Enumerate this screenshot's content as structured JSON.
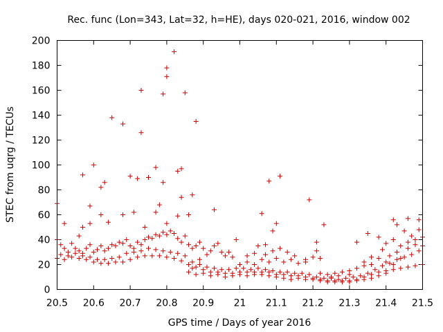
{
  "chart_data": {
    "type": "scatter",
    "title": "Rec. func (Lon=343, Lat=32, h=HE), days 020-021, 2016, window 002",
    "xlabel": "GPS time / Days of year 2016",
    "ylabel": "STEC from uqrg / TECUs",
    "xlim": [
      20.5,
      21.5
    ],
    "ylim": [
      0,
      200
    ],
    "xticks": [
      "20.5",
      "20.6",
      "20.7",
      "20.8",
      "20.9",
      "21",
      "21.1",
      "21.2",
      "21.3",
      "21.4",
      "21.5"
    ],
    "yticks": [
      "0",
      "20",
      "40",
      "60",
      "80",
      "100",
      "120",
      "140",
      "160",
      "180",
      "200"
    ],
    "grid": false,
    "marker": "+",
    "colors": {
      "points": "#cc0000",
      "axes": "#000000"
    },
    "series": [
      {
        "name": "STEC",
        "points": [
          [
            20.5,
            69
          ],
          [
            20.52,
            53
          ],
          [
            20.57,
            92
          ],
          [
            20.59,
            67
          ],
          [
            20.6,
            100
          ],
          [
            20.62,
            82
          ],
          [
            20.63,
            86
          ],
          [
            20.65,
            138
          ],
          [
            20.68,
            133
          ],
          [
            20.7,
            91
          ],
          [
            20.72,
            89
          ],
          [
            20.73,
            160
          ],
          [
            20.73,
            126
          ],
          [
            20.75,
            90
          ],
          [
            20.77,
            98
          ],
          [
            20.79,
            157
          ],
          [
            20.8,
            171
          ],
          [
            20.8,
            178
          ],
          [
            20.82,
            191
          ],
          [
            20.83,
            95
          ],
          [
            20.84,
            97
          ],
          [
            20.85,
            158
          ],
          [
            20.88,
            135
          ],
          [
            20.87,
            76
          ],
          [
            20.93,
            64
          ],
          [
            21.08,
            87
          ],
          [
            21.11,
            91
          ],
          [
            21.19,
            72
          ],
          [
            21.1,
            53
          ],
          [
            21.06,
            61
          ],
          [
            21.23,
            52
          ],
          [
            21.42,
            56
          ],
          [
            21.43,
            52
          ],
          [
            21.46,
            57
          ],
          [
            21.49,
            56
          ],
          [
            20.64,
            54
          ],
          [
            20.62,
            60
          ],
          [
            20.71,
            62
          ],
          [
            20.77,
            62
          ],
          [
            20.8,
            53
          ],
          [
            20.83,
            59
          ],
          [
            20.86,
            60
          ],
          [
            20.78,
            68
          ],
          [
            20.84,
            74
          ],
          [
            20.79,
            86
          ],
          [
            20.68,
            60
          ],
          [
            20.74,
            50
          ],
          [
            20.57,
            50
          ],
          [
            20.59,
            53
          ],
          [
            20.56,
            43
          ],
          [
            20.5,
            40
          ],
          [
            20.51,
            36
          ],
          [
            20.52,
            33
          ],
          [
            20.53,
            30
          ],
          [
            20.54,
            37
          ],
          [
            20.55,
            33
          ],
          [
            20.56,
            31
          ],
          [
            20.57,
            29
          ],
          [
            20.58,
            33
          ],
          [
            20.59,
            36
          ],
          [
            20.6,
            30
          ],
          [
            20.61,
            32
          ],
          [
            20.62,
            35
          ],
          [
            20.63,
            31
          ],
          [
            20.64,
            33
          ],
          [
            20.65,
            36
          ],
          [
            20.66,
            35
          ],
          [
            20.67,
            38
          ],
          [
            20.68,
            37
          ],
          [
            20.69,
            40
          ],
          [
            20.7,
            35
          ],
          [
            20.71,
            33
          ],
          [
            20.72,
            38
          ],
          [
            20.73,
            36
          ],
          [
            20.74,
            40
          ],
          [
            20.75,
            42
          ],
          [
            20.76,
            41
          ],
          [
            20.77,
            44
          ],
          [
            20.78,
            43
          ],
          [
            20.79,
            46
          ],
          [
            20.8,
            44
          ],
          [
            20.81,
            47
          ],
          [
            20.82,
            45
          ],
          [
            20.83,
            41
          ],
          [
            20.84,
            38
          ],
          [
            20.85,
            43
          ],
          [
            20.86,
            36
          ],
          [
            20.87,
            33
          ],
          [
            20.88,
            35
          ],
          [
            20.89,
            38
          ],
          [
            20.9,
            33
          ],
          [
            20.91,
            28
          ],
          [
            20.92,
            31
          ],
          [
            20.93,
            35
          ],
          [
            20.94,
            37
          ],
          [
            20.95,
            30
          ],
          [
            20.96,
            27
          ],
          [
            20.97,
            30
          ],
          [
            20.98,
            26
          ],
          [
            20.99,
            40
          ],
          [
            20.5,
            25
          ],
          [
            20.52,
            24
          ],
          [
            20.54,
            26
          ],
          [
            20.56,
            25
          ],
          [
            20.58,
            24
          ],
          [
            20.6,
            22
          ],
          [
            20.62,
            21
          ],
          [
            20.64,
            21
          ],
          [
            20.66,
            22
          ],
          [
            20.68,
            22
          ],
          [
            20.7,
            24
          ],
          [
            20.72,
            26
          ],
          [
            20.74,
            27
          ],
          [
            20.76,
            27
          ],
          [
            20.78,
            27
          ],
          [
            20.8,
            26
          ],
          [
            20.82,
            25
          ],
          [
            20.84,
            23
          ],
          [
            20.86,
            20
          ],
          [
            20.88,
            18
          ],
          [
            20.9,
            16
          ],
          [
            20.92,
            14
          ],
          [
            20.94,
            14
          ],
          [
            20.96,
            13
          ],
          [
            20.98,
            13
          ],
          [
            21.0,
            14
          ],
          [
            21.02,
            14
          ],
          [
            21.04,
            14
          ],
          [
            21.06,
            14
          ],
          [
            21.08,
            14
          ],
          [
            21.1,
            12
          ],
          [
            21.12,
            12
          ],
          [
            21.14,
            11
          ],
          [
            21.16,
            11
          ],
          [
            21.18,
            10
          ],
          [
            21.2,
            9
          ],
          [
            21.22,
            8
          ],
          [
            21.24,
            7
          ],
          [
            21.26,
            7
          ],
          [
            21.28,
            7
          ],
          [
            21.3,
            7
          ],
          [
            21.32,
            8
          ],
          [
            21.34,
            10
          ],
          [
            21.36,
            12
          ],
          [
            21.38,
            14
          ],
          [
            21.4,
            15
          ],
          [
            21.42,
            16
          ],
          [
            21.44,
            17
          ],
          [
            21.46,
            18
          ],
          [
            21.48,
            19
          ],
          [
            21.5,
            20
          ],
          [
            20.51,
            28
          ],
          [
            20.53,
            27
          ],
          [
            20.55,
            29
          ],
          [
            20.57,
            27
          ],
          [
            20.59,
            26
          ],
          [
            20.61,
            24
          ],
          [
            20.63,
            24
          ],
          [
            20.65,
            25
          ],
          [
            20.67,
            26
          ],
          [
            20.69,
            29
          ],
          [
            20.71,
            30
          ],
          [
            20.73,
            31
          ],
          [
            20.75,
            33
          ],
          [
            20.77,
            32
          ],
          [
            20.79,
            31
          ],
          [
            20.81,
            30
          ],
          [
            20.83,
            29
          ],
          [
            20.85,
            27
          ],
          [
            20.87,
            22
          ],
          [
            20.89,
            20
          ],
          [
            20.91,
            18
          ],
          [
            20.93,
            17
          ],
          [
            20.95,
            16
          ],
          [
            20.97,
            16
          ],
          [
            20.99,
            17
          ],
          [
            21.01,
            17
          ],
          [
            21.03,
            16
          ],
          [
            21.05,
            17
          ],
          [
            21.07,
            16
          ],
          [
            21.09,
            15
          ],
          [
            21.11,
            14
          ],
          [
            21.13,
            14
          ],
          [
            21.15,
            13
          ],
          [
            21.17,
            13
          ],
          [
            21.19,
            12
          ],
          [
            21.21,
            10
          ],
          [
            21.23,
            9
          ],
          [
            21.25,
            9
          ],
          [
            21.27,
            8
          ],
          [
            21.29,
            9
          ],
          [
            21.31,
            10
          ],
          [
            21.33,
            11
          ],
          [
            21.35,
            13
          ],
          [
            21.37,
            16
          ],
          [
            21.39,
            19
          ],
          [
            21.41,
            21
          ],
          [
            21.43,
            24
          ],
          [
            21.45,
            26
          ],
          [
            21.47,
            28
          ],
          [
            21.49,
            31
          ],
          [
            21.0,
            20
          ],
          [
            21.02,
            22
          ],
          [
            21.04,
            20
          ],
          [
            21.06,
            24
          ],
          [
            21.08,
            22
          ],
          [
            21.1,
            25
          ],
          [
            21.12,
            22
          ],
          [
            21.14,
            24
          ],
          [
            21.16,
            21
          ],
          [
            21.18,
            22
          ],
          [
            21.2,
            26
          ],
          [
            21.22,
            25
          ],
          [
            21.02,
            27
          ],
          [
            21.04,
            29
          ],
          [
            21.07,
            28
          ],
          [
            21.09,
            31
          ],
          [
            21.11,
            33
          ],
          [
            21.13,
            30
          ],
          [
            21.15,
            27
          ],
          [
            21.18,
            24
          ],
          [
            21.21,
            31
          ],
          [
            21.21,
            38
          ],
          [
            21.05,
            35
          ],
          [
            21.07,
            36
          ],
          [
            21.09,
            47
          ],
          [
            21.32,
            38
          ],
          [
            21.35,
            45
          ],
          [
            21.38,
            42
          ],
          [
            21.4,
            37
          ],
          [
            21.42,
            40
          ],
          [
            21.44,
            35
          ],
          [
            21.46,
            38
          ],
          [
            21.48,
            40
          ],
          [
            21.5,
            42
          ],
          [
            21.45,
            47
          ],
          [
            21.47,
            43
          ],
          [
            21.49,
            48
          ],
          [
            21.39,
            32
          ],
          [
            21.41,
            27
          ],
          [
            21.43,
            30
          ],
          [
            21.36,
            26
          ],
          [
            21.38,
            25
          ],
          [
            21.34,
            22
          ],
          [
            21.28,
            14
          ],
          [
            21.26,
            13
          ],
          [
            21.24,
            12
          ],
          [
            21.22,
            13
          ],
          [
            21.3,
            15
          ],
          [
            21.32,
            17
          ],
          [
            21.34,
            19
          ],
          [
            21.36,
            20
          ],
          [
            21.27,
            11
          ],
          [
            21.25,
            10
          ],
          [
            21.3,
            12
          ],
          [
            21.4,
            22
          ],
          [
            21.44,
            25
          ],
          [
            21.46,
            33
          ],
          [
            21.48,
            36
          ],
          [
            21.5,
            35
          ],
          [
            21.42,
            20
          ],
          [
            20.92,
            11
          ],
          [
            20.94,
            12
          ],
          [
            20.96,
            10
          ],
          [
            20.98,
            11
          ],
          [
            21.0,
            12
          ],
          [
            21.02,
            11
          ],
          [
            21.04,
            12
          ],
          [
            21.06,
            12
          ],
          [
            21.08,
            11
          ],
          [
            21.1,
            10
          ],
          [
            21.12,
            9
          ],
          [
            21.14,
            8
          ],
          [
            21.16,
            9
          ],
          [
            21.18,
            8
          ],
          [
            21.2,
            8
          ],
          [
            21.22,
            7
          ],
          [
            21.24,
            6
          ],
          [
            21.26,
            6
          ],
          [
            21.28,
            6
          ],
          [
            21.3,
            6
          ],
          [
            21.32,
            7
          ],
          [
            21.34,
            8
          ],
          [
            21.36,
            9
          ],
          [
            21.38,
            11
          ],
          [
            21.4,
            13
          ],
          [
            20.88,
            12
          ],
          [
            20.9,
            13
          ],
          [
            20.86,
            14
          ],
          [
            20.87,
            17
          ],
          [
            20.89,
            24
          ]
        ]
      }
    ]
  }
}
